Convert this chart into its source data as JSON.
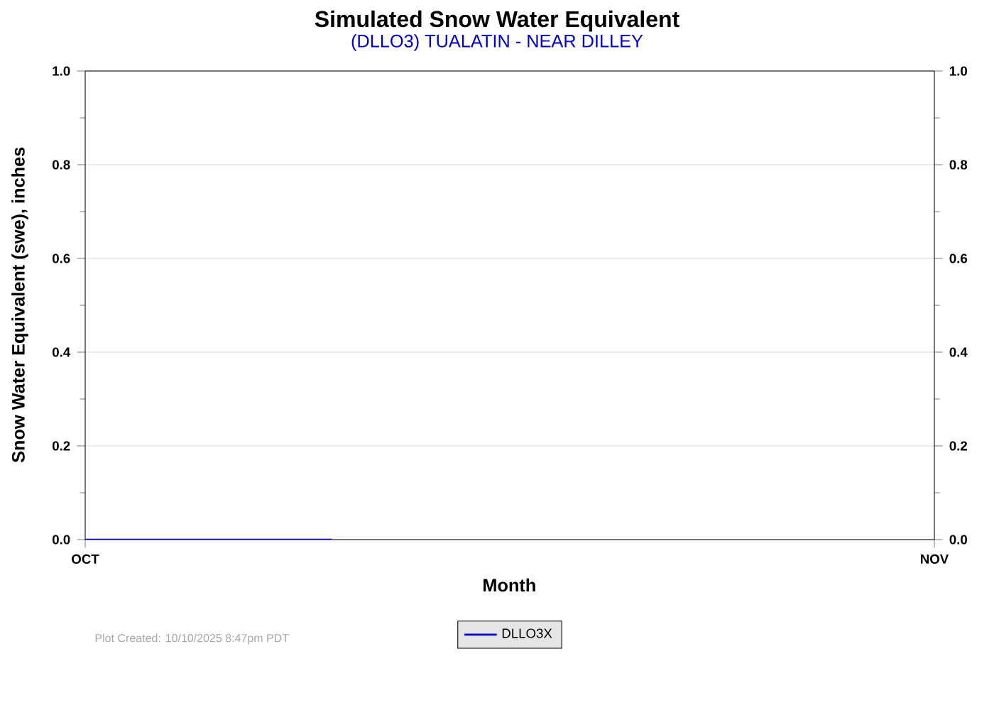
{
  "chart_data": {
    "type": "line",
    "title": "Simulated Snow Water Equivalent",
    "subtitle": "(DLLO3) TUALATIN - NEAR DILLEY",
    "xlabel": "Month",
    "ylabel": "Snow Water Equivalent (swe),  inches",
    "series": [
      {
        "name": "DLLO3X",
        "color": "#0000cc",
        "x": [
          "2025-10-01",
          "2025-10-10"
        ],
        "values": [
          0,
          0
        ]
      }
    ],
    "xlim": [
      "2025-10-01",
      "2025-11-01"
    ],
    "xticks": [
      {
        "value": "2025-10-01",
        "label": "OCT"
      },
      {
        "value": "2025-11-01",
        "label": "NOV"
      }
    ],
    "ylim": [
      0,
      1
    ],
    "yticks": [
      {
        "value": 0,
        "label": "0.0"
      },
      0.2,
      0.4,
      0.6,
      0.8,
      {
        "value": 1,
        "label": "1.0"
      }
    ],
    "y2lim": [
      0,
      1
    ],
    "y2ticks": [
      {
        "value": 0,
        "label": "0.0"
      },
      0.2,
      0.4,
      0.6,
      0.8,
      {
        "value": 1,
        "label": "1.0"
      }
    ],
    "grid": "y",
    "legend": "bottom",
    "annotations": [
      "Plot Created: 10/10/2025 8:47pm PDT"
    ]
  }
}
